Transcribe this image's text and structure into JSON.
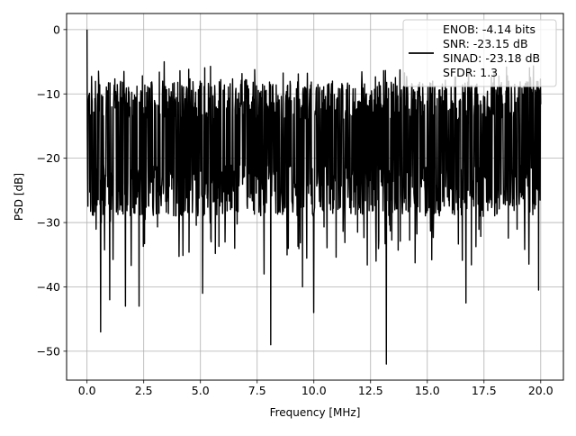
{
  "chart_data": {
    "type": "line",
    "title": "",
    "xlabel": "Frequency [MHz]",
    "ylabel": "PSD [dB]",
    "xlim": [
      -0.9,
      21.0
    ],
    "ylim": [
      -54.5,
      2.5
    ],
    "xticks": [
      0.0,
      2.5,
      5.0,
      7.5,
      10.0,
      12.5,
      15.0,
      17.5,
      20.0
    ],
    "xtick_labels": [
      "0.0",
      "2.5",
      "5.0",
      "7.5",
      "10.0",
      "12.5",
      "15.0",
      "17.5",
      "20.0"
    ],
    "yticks": [
      0,
      -10,
      -20,
      -30,
      -40,
      -50
    ],
    "ytick_labels": [
      "0",
      "−10",
      "−20",
      "−30",
      "−40",
      "−50"
    ],
    "grid": true,
    "legend_position": "top-right",
    "legend_lines": [
      "ENOB: -4.14 bits",
      "SNR: -23.15 dB",
      "SINAD: -23.18 dB",
      "SFDR: 1.3"
    ],
    "series": [
      {
        "color": "#000000",
        "x_range": [
          0.0,
          20.0
        ],
        "num_points": 1500,
        "noise_band": {
          "typical_upper_db": -8,
          "typical_lower_db": -29,
          "center_db": -17
        },
        "points": [
          {
            "x": 0.0,
            "y": 0.0
          },
          {
            "x": 0.02,
            "y": -15.5
          },
          {
            "x": 0.6,
            "y": -47.0
          },
          {
            "x": 1.0,
            "y": -42.0
          },
          {
            "x": 1.7,
            "y": -43.0
          },
          {
            "x": 2.3,
            "y": -43.0
          },
          {
            "x": 3.4,
            "y": -5.0
          },
          {
            "x": 5.1,
            "y": -41.0
          },
          {
            "x": 7.8,
            "y": -38.0
          },
          {
            "x": 8.1,
            "y": -49.0
          },
          {
            "x": 9.5,
            "y": -40.0
          },
          {
            "x": 10.0,
            "y": -44.0
          },
          {
            "x": 13.2,
            "y": -52.0
          },
          {
            "x": 16.7,
            "y": -42.5
          },
          {
            "x": 19.9,
            "y": -40.5
          }
        ]
      }
    ]
  }
}
